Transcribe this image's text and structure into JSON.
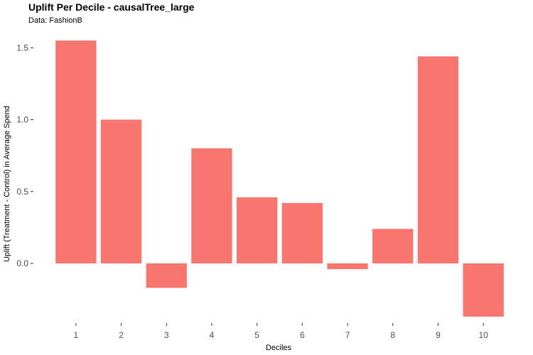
{
  "chart_data": {
    "type": "bar",
    "title": "Uplift Per Decile - causalTree_large",
    "subtitle": "Data: FashionB",
    "xlabel": "Deciles",
    "ylabel": "Uplift (Treatment - Control) in Average Spend",
    "categories": [
      "1",
      "2",
      "3",
      "4",
      "5",
      "6",
      "7",
      "8",
      "9",
      "10"
    ],
    "values": [
      1.55,
      1.0,
      -0.17,
      0.8,
      0.46,
      0.42,
      -0.04,
      0.24,
      1.44,
      -0.37
    ],
    "yticks": [
      0.0,
      0.5,
      1.0,
      1.5
    ],
    "ytick_labels": [
      "0.0",
      "0.5",
      "1.0",
      "1.5"
    ],
    "ylim": [
      -0.45,
      1.6
    ],
    "bar_color": "#f8766d",
    "grid": false,
    "legend": "none"
  }
}
